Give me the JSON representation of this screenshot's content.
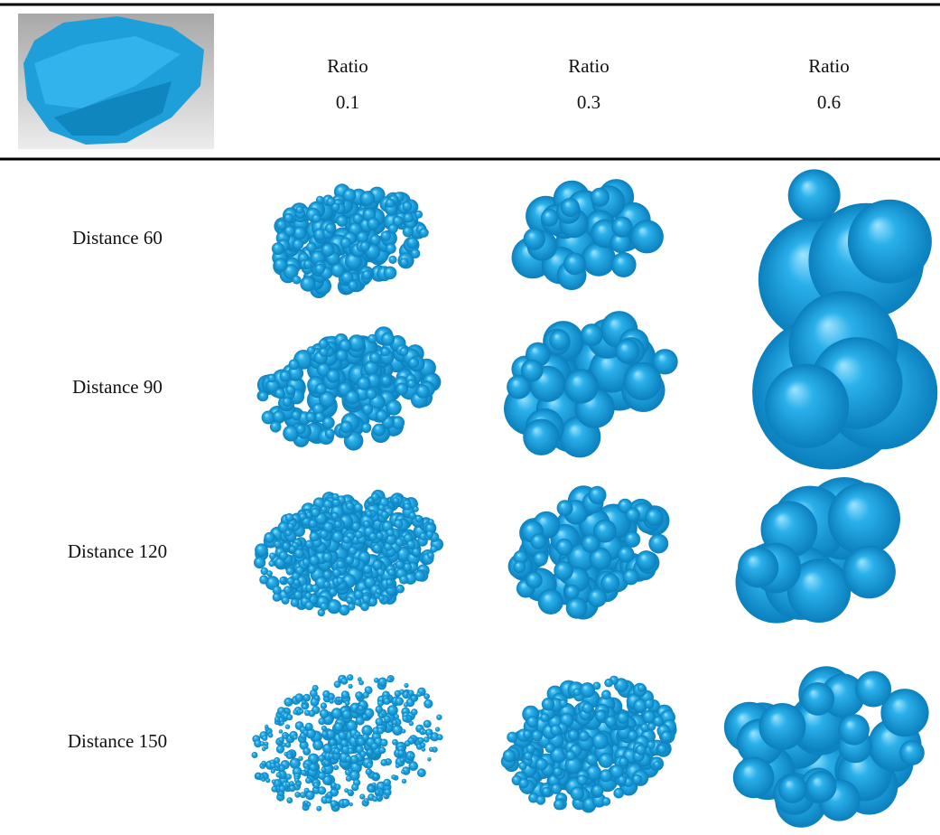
{
  "header": {
    "columns": [
      {
        "title": "Ratio",
        "value": "0.1"
      },
      {
        "title": "Ratio",
        "value": "0.3"
      },
      {
        "title": "Ratio",
        "value": "0.6"
      }
    ]
  },
  "rows": [
    "Distance 60",
    "Distance 90",
    "Distance 120",
    "Distance 150"
  ]
}
